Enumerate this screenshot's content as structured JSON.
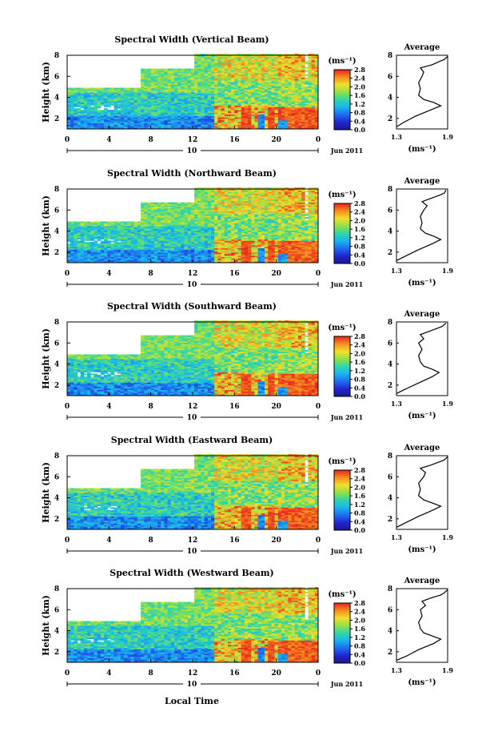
{
  "chart_data": {
    "type": "heatmap",
    "xlabel": "Local Time",
    "date_label": "Jun 2011",
    "day_label": "10",
    "x_ticks": [
      "0",
      "4",
      "8",
      "12",
      "16",
      "20",
      "0"
    ],
    "xlim": [
      0,
      24
    ],
    "ylabel": "Height (km)",
    "y_ticks": [
      "2",
      "4",
      "6",
      "8"
    ],
    "ylim": [
      1,
      8
    ],
    "colorbar": {
      "unit_label": "(ms⁻¹)",
      "ticks": [
        "2.8",
        "2.4",
        "2.0",
        "1.6",
        "1.2",
        "0.8",
        "0.4",
        "0.0"
      ],
      "range": [
        0.0,
        2.8
      ]
    },
    "profile": {
      "title": "Average",
      "xlabel": "(ms⁻¹)",
      "x_ticks": [
        "1.3",
        "1.9"
      ],
      "xlim": [
        1.3,
        1.9
      ],
      "y_ticks": [
        "2",
        "4",
        "6",
        "8"
      ],
      "ylim": [
        1,
        8
      ]
    },
    "panels": [
      {
        "title": "Spectral Width (Vertical Beam)",
        "profile_points": [
          [
            1.3,
            1.2
          ],
          [
            1.38,
            1.6
          ],
          [
            1.52,
            2.2
          ],
          [
            1.7,
            2.8
          ],
          [
            1.82,
            3.2
          ],
          [
            1.74,
            3.5
          ],
          [
            1.62,
            3.8
          ],
          [
            1.56,
            4.2
          ],
          [
            1.58,
            4.8
          ],
          [
            1.56,
            5.4
          ],
          [
            1.6,
            6.0
          ],
          [
            1.62,
            6.4
          ],
          [
            1.58,
            6.8
          ],
          [
            1.72,
            7.1
          ],
          [
            1.8,
            7.4
          ],
          [
            1.86,
            7.6
          ],
          [
            1.9,
            7.9
          ]
        ]
      },
      {
        "title": "Spectral Width (Northward Beam)",
        "profile_points": [
          [
            1.3,
            1.2
          ],
          [
            1.4,
            1.6
          ],
          [
            1.55,
            2.2
          ],
          [
            1.72,
            2.8
          ],
          [
            1.82,
            3.2
          ],
          [
            1.74,
            3.5
          ],
          [
            1.64,
            3.8
          ],
          [
            1.58,
            4.2
          ],
          [
            1.6,
            4.8
          ],
          [
            1.58,
            5.4
          ],
          [
            1.62,
            6.0
          ],
          [
            1.66,
            6.4
          ],
          [
            1.6,
            6.8
          ],
          [
            1.7,
            7.1
          ],
          [
            1.8,
            7.4
          ],
          [
            1.86,
            7.6
          ],
          [
            1.88,
            7.9
          ]
        ]
      },
      {
        "title": "Spectral Width (Southward Beam)",
        "profile_points": [
          [
            1.3,
            1.2
          ],
          [
            1.4,
            1.6
          ],
          [
            1.56,
            2.2
          ],
          [
            1.72,
            2.8
          ],
          [
            1.8,
            3.2
          ],
          [
            1.72,
            3.5
          ],
          [
            1.62,
            3.8
          ],
          [
            1.58,
            4.2
          ],
          [
            1.56,
            4.8
          ],
          [
            1.6,
            5.4
          ],
          [
            1.56,
            6.0
          ],
          [
            1.62,
            6.4
          ],
          [
            1.58,
            6.8
          ],
          [
            1.68,
            7.1
          ],
          [
            1.78,
            7.4
          ],
          [
            1.84,
            7.6
          ],
          [
            1.88,
            7.9
          ]
        ]
      },
      {
        "title": "Spectral Width (Eastward Beam)",
        "profile_points": [
          [
            1.3,
            1.2
          ],
          [
            1.4,
            1.6
          ],
          [
            1.55,
            2.2
          ],
          [
            1.72,
            2.8
          ],
          [
            1.82,
            3.2
          ],
          [
            1.72,
            3.5
          ],
          [
            1.62,
            3.8
          ],
          [
            1.56,
            4.2
          ],
          [
            1.58,
            4.8
          ],
          [
            1.56,
            5.4
          ],
          [
            1.62,
            6.0
          ],
          [
            1.64,
            6.4
          ],
          [
            1.58,
            6.8
          ],
          [
            1.7,
            7.1
          ],
          [
            1.8,
            7.4
          ],
          [
            1.86,
            7.6
          ],
          [
            1.9,
            7.9
          ]
        ]
      },
      {
        "title": "Spectral Width (Westward Beam)",
        "profile_points": [
          [
            1.3,
            1.2
          ],
          [
            1.42,
            1.6
          ],
          [
            1.56,
            2.2
          ],
          [
            1.74,
            2.8
          ],
          [
            1.82,
            3.2
          ],
          [
            1.72,
            3.5
          ],
          [
            1.62,
            3.8
          ],
          [
            1.58,
            4.2
          ],
          [
            1.56,
            4.8
          ],
          [
            1.6,
            5.4
          ],
          [
            1.58,
            6.0
          ],
          [
            1.64,
            6.4
          ],
          [
            1.6,
            6.8
          ],
          [
            1.7,
            7.1
          ],
          [
            1.82,
            7.4
          ],
          [
            1.86,
            7.6
          ],
          [
            1.9,
            7.9
          ]
        ]
      }
    ]
  }
}
